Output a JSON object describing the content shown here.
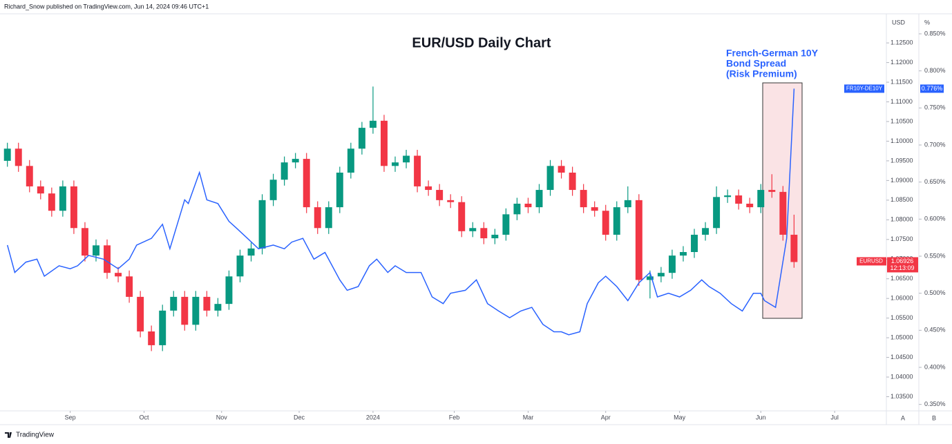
{
  "header": "Richard_Snow published on TradingView.com, Jun 14, 2024 09:46 UTC+1",
  "footer": "TradingView",
  "chart_data": {
    "type": "candlestick",
    "title": "EUR/USD Daily Chart",
    "annotation": [
      "French-German 10Y",
      "Bond Spread",
      "(Risk Premium)"
    ],
    "y_axis_label": "USD",
    "y2_axis_label": "%",
    "scale_buttons": [
      "A",
      "B"
    ],
    "xlim": [
      0,
      240
    ],
    "xticks": [
      {
        "value": 19,
        "label": "Sep"
      },
      {
        "value": 39,
        "label": "Oct"
      },
      {
        "value": 60,
        "label": "Nov"
      },
      {
        "value": 81,
        "label": "Dec"
      },
      {
        "value": 101,
        "label": "2024"
      },
      {
        "value": 123,
        "label": "Feb"
      },
      {
        "value": 143,
        "label": "Mar"
      },
      {
        "value": 164,
        "label": "Apr"
      },
      {
        "value": 184,
        "label": "May"
      },
      {
        "value": 206,
        "label": "Jun"
      },
      {
        "value": 226,
        "label": "Jul"
      }
    ],
    "ylim": [
      1.0314,
      1.1324
    ],
    "yticks": [
      {
        "value": 1.035,
        "label": "1.03500"
      },
      {
        "value": 1.04,
        "label": "1.04000"
      },
      {
        "value": 1.045,
        "label": "1.04500"
      },
      {
        "value": 1.05,
        "label": "1.05000"
      },
      {
        "value": 1.055,
        "label": "1.05500"
      },
      {
        "value": 1.06,
        "label": "1.06000"
      },
      {
        "value": 1.065,
        "label": "1.06500"
      },
      {
        "value": 1.07,
        "label": "1.07000"
      },
      {
        "value": 1.075,
        "label": "1.07500"
      },
      {
        "value": 1.08,
        "label": "1.08000"
      },
      {
        "value": 1.085,
        "label": "1.08500"
      },
      {
        "value": 1.09,
        "label": "1.09000"
      },
      {
        "value": 1.095,
        "label": "1.09500"
      },
      {
        "value": 1.1,
        "label": "1.10000"
      },
      {
        "value": 1.105,
        "label": "1.10500"
      },
      {
        "value": 1.11,
        "label": "1.11000"
      },
      {
        "value": 1.115,
        "label": "1.11500"
      },
      {
        "value": 1.12,
        "label": "1.12000"
      },
      {
        "value": 1.125,
        "label": "1.12500"
      }
    ],
    "y2lim": [
      0.3413,
      0.877
    ],
    "y2ticks": [
      {
        "value": 0.35,
        "label": "0.350%"
      },
      {
        "value": 0.4,
        "label": "0.400%"
      },
      {
        "value": 0.45,
        "label": "0.450%"
      },
      {
        "value": 0.5,
        "label": "0.500%"
      },
      {
        "value": 0.55,
        "label": "0.550%"
      },
      {
        "value": 0.6,
        "label": "0.600%"
      },
      {
        "value": 0.65,
        "label": "0.650%"
      },
      {
        "value": 0.7,
        "label": "0.700%"
      },
      {
        "value": 0.75,
        "label": "0.750%"
      },
      {
        "value": 0.8,
        "label": "0.800%"
      },
      {
        "value": 0.85,
        "label": "0.850%"
      }
    ],
    "grid": false,
    "series": [
      {
        "name": "EURUSD",
        "type": "candlestick",
        "up_color": "#089981",
        "down_color": "#f23645",
        "last_label": "1.06926",
        "countdown": "12:13:09",
        "x": [
          2,
          5,
          8,
          11,
          14,
          17,
          20,
          23,
          26,
          29,
          32,
          35,
          38,
          41,
          44,
          47,
          50,
          53,
          56,
          59,
          62,
          65,
          68,
          71,
          74,
          77,
          80,
          83,
          86,
          89,
          92,
          95,
          98,
          101,
          104,
          107,
          110,
          113,
          116,
          119,
          122,
          125,
          128,
          131,
          134,
          137,
          140,
          143,
          146,
          149,
          152,
          155,
          158,
          161,
          164,
          167,
          170,
          173,
          176,
          179,
          182,
          185,
          188,
          191,
          194,
          197,
          200,
          203,
          206,
          209,
          212,
          215
        ],
        "open": [
          1.095,
          1.0981,
          1.0937,
          1.0885,
          1.0867,
          1.0823,
          1.0885,
          1.0779,
          1.0709,
          1.0735,
          1.0665,
          1.0656,
          1.0604,
          1.0516,
          1.0481,
          1.0569,
          1.0604,
          1.0533,
          1.0604,
          1.0569,
          1.0586,
          1.0656,
          1.0709,
          1.0727,
          1.085,
          1.0902,
          1.0946,
          1.0955,
          1.0832,
          1.0779,
          1.0832,
          1.092,
          1.0981,
          1.1034,
          1.1052,
          1.0937,
          1.0946,
          1.0963,
          1.0885,
          1.0876,
          1.085,
          1.0845,
          1.0771,
          1.0779,
          1.0753,
          1.0762,
          1.0814,
          1.0841,
          1.0832,
          1.0876,
          1.0937,
          1.092,
          1.0876,
          1.0832,
          1.0823,
          1.0762,
          1.0832,
          1.085,
          1.0647,
          1.0656,
          1.0665,
          1.0709,
          1.0718,
          1.0762,
          1.0779,
          1.0858,
          1.0862,
          1.0841,
          1.0832,
          1.0876,
          1.0871,
          1.0762
        ],
        "high": [
          1.0996,
          1.0996,
          1.0952,
          1.09,
          1.0882,
          1.09,
          1.09,
          1.0794,
          1.075,
          1.075,
          1.068,
          1.0671,
          1.0619,
          1.0531,
          1.0584,
          1.0619,
          1.0619,
          1.0619,
          1.0619,
          1.0601,
          1.0671,
          1.0724,
          1.0742,
          1.0865,
          1.0917,
          1.0961,
          1.097,
          1.097,
          1.0847,
          1.0847,
          1.0935,
          1.0996,
          1.1049,
          1.1139,
          1.1067,
          1.0961,
          1.0978,
          1.0978,
          1.09,
          1.0891,
          1.0865,
          1.086,
          1.0794,
          1.0794,
          1.0777,
          1.0829,
          1.0856,
          1.0856,
          1.0891,
          1.0952,
          1.0952,
          1.0935,
          1.0891,
          1.0847,
          1.0838,
          1.0847,
          1.0885,
          1.0865,
          1.0671,
          1.068,
          1.0724,
          1.0733,
          1.0777,
          1.0794,
          1.0885,
          1.0877,
          1.0877,
          1.0856,
          1.0891,
          1.0916,
          1.0886,
          1.0813
        ],
        "low": [
          1.0935,
          1.0922,
          1.087,
          1.0852,
          1.0808,
          1.0808,
          1.0764,
          1.0694,
          1.0694,
          1.065,
          1.0641,
          1.0589,
          1.0501,
          1.0466,
          1.0466,
          1.0554,
          1.0518,
          1.0518,
          1.0554,
          1.0554,
          1.0571,
          1.0641,
          1.0694,
          1.0712,
          1.0835,
          1.0887,
          1.0931,
          1.0817,
          1.0764,
          1.0764,
          1.0817,
          1.0905,
          1.0966,
          1.1019,
          1.0922,
          1.0922,
          1.0931,
          1.087,
          1.0861,
          1.0835,
          1.083,
          1.0756,
          1.0756,
          1.0738,
          1.0738,
          1.0747,
          1.0799,
          1.0817,
          1.0817,
          1.0861,
          1.0905,
          1.0861,
          1.0817,
          1.0808,
          1.0747,
          1.0747,
          1.0817,
          1.0632,
          1.06,
          1.0641,
          1.065,
          1.0694,
          1.0703,
          1.0747,
          1.0764,
          1.0843,
          1.0826,
          1.0817,
          1.0817,
          1.0856,
          1.0747,
          1.0678
        ],
        "close": [
          1.0981,
          1.0937,
          1.0885,
          1.0867,
          1.0823,
          1.0885,
          1.0779,
          1.0709,
          1.0735,
          1.0665,
          1.0656,
          1.0604,
          1.0516,
          1.0481,
          1.0569,
          1.0604,
          1.0533,
          1.0604,
          1.0569,
          1.0586,
          1.0656,
          1.0709,
          1.0727,
          1.085,
          1.0902,
          1.0946,
          1.0955,
          1.0832,
          1.0779,
          1.0832,
          1.092,
          1.0981,
          1.1034,
          1.1052,
          1.0937,
          1.0946,
          1.0963,
          1.0885,
          1.0876,
          1.085,
          1.0845,
          1.0771,
          1.0779,
          1.0753,
          1.0762,
          1.0814,
          1.0841,
          1.0832,
          1.0876,
          1.0937,
          1.092,
          1.0876,
          1.0832,
          1.0823,
          1.0762,
          1.0832,
          1.085,
          1.0647,
          1.0656,
          1.0665,
          1.0709,
          1.0718,
          1.0762,
          1.0779,
          1.0858,
          1.0862,
          1.0841,
          1.0832,
          1.0876,
          1.0871,
          1.0762,
          1.06926
        ]
      },
      {
        "name": "FR10Y-DE10Y",
        "type": "line",
        "axis": "y2",
        "color": "#2962ff",
        "last_label": "0.776%",
        "x": [
          2,
          4,
          7,
          10,
          12,
          16,
          19,
          21,
          24,
          28,
          32,
          35,
          37,
          41,
          44,
          46,
          48,
          50,
          51,
          54,
          56,
          59,
          62,
          64,
          67,
          70,
          74,
          77,
          79,
          82,
          85,
          88,
          92,
          94,
          97,
          100,
          102,
          105,
          107,
          110,
          114,
          117,
          120,
          122,
          126,
          129,
          132,
          135,
          138,
          141,
          144,
          147,
          150,
          152,
          154,
          157,
          159,
          162,
          164,
          167,
          170,
          173,
          176,
          178,
          181,
          184,
          187,
          190,
          192,
          195,
          198,
          201,
          204,
          206,
          207,
          210,
          213,
          215
        ],
        "values": [
          0.565,
          0.528,
          0.542,
          0.546,
          0.523,
          0.537,
          0.533,
          0.537,
          0.551,
          0.546,
          0.533,
          0.546,
          0.565,
          0.574,
          0.593,
          0.56,
          0.593,
          0.626,
          0.621,
          0.663,
          0.626,
          0.621,
          0.597,
          0.588,
          0.574,
          0.56,
          0.565,
          0.56,
          0.569,
          0.574,
          0.546,
          0.555,
          0.518,
          0.504,
          0.509,
          0.537,
          0.546,
          0.528,
          0.537,
          0.528,
          0.528,
          0.495,
          0.486,
          0.5,
          0.504,
          0.518,
          0.486,
          0.476,
          0.467,
          0.476,
          0.481,
          0.458,
          0.448,
          0.448,
          0.444,
          0.448,
          0.486,
          0.514,
          0.523,
          0.509,
          0.49,
          0.514,
          0.528,
          0.495,
          0.5,
          0.495,
          0.504,
          0.518,
          0.509,
          0.5,
          0.486,
          0.476,
          0.5,
          0.5,
          0.49,
          0.481,
          0.574,
          0.776
        ]
      }
    ]
  }
}
